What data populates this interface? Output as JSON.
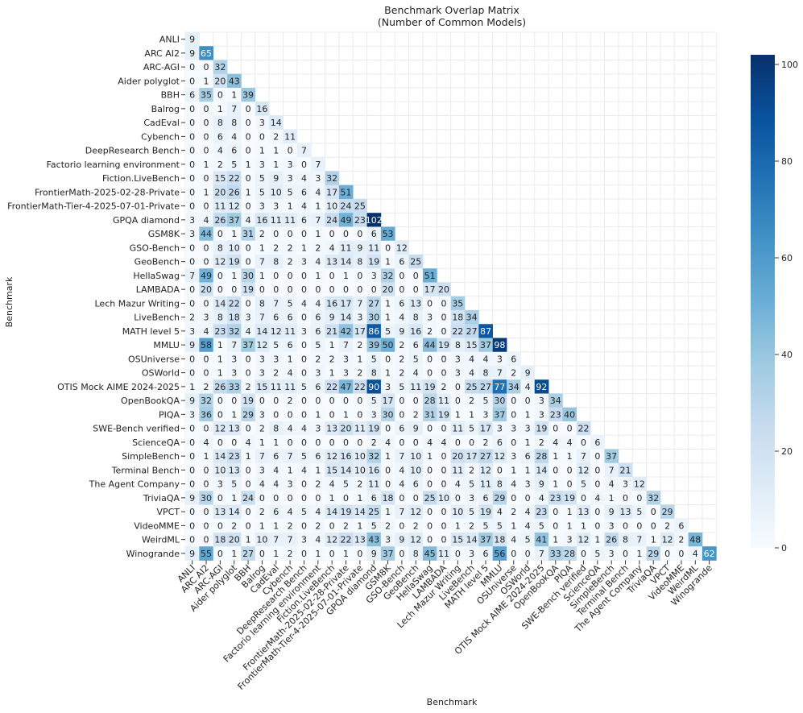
{
  "chart_data": {
    "type": "heatmap",
    "title": "Benchmark Overlap Matrix",
    "subtitle": "(Number of Common Models)",
    "xlabel": "Benchmark",
    "ylabel": "Benchmark",
    "colormap": "Blues",
    "color_low": "#f7fbff",
    "color_high": "#08306b",
    "value_range": [
      0,
      102
    ],
    "colorbar_ticks": [
      0,
      20,
      40,
      60,
      80,
      100
    ],
    "mask": "upper-triangle",
    "labels": [
      "ANLI",
      "ARC AI2",
      "ARC-AGI",
      "Aider polyglot",
      "BBH",
      "Balrog",
      "CadEval",
      "Cybench",
      "DeepResearch Bench",
      "Factorio learning environment",
      "Fiction.LiveBench",
      "FrontierMath-2025-02-28-Private",
      "FrontierMath-Tier-4-2025-07-01-Private",
      "GPQA diamond",
      "GSM8K",
      "GSO-Bench",
      "GeoBench",
      "HellaSwag",
      "LAMBADA",
      "Lech Mazur Writing",
      "LiveBench",
      "MATH level 5",
      "MMLU",
      "OSUniverse",
      "OSWorld",
      "OTIS Mock AIME 2024-2025",
      "OpenBookQA",
      "PIQA",
      "SWE-Bench verified",
      "ScienceQA",
      "SimpleBench",
      "Terminal Bench",
      "The Agent Company",
      "TriviaQA",
      "VPCT",
      "VideoMME",
      "WeirdML",
      "Winogrande"
    ],
    "rows": [
      [
        9
      ],
      [
        9,
        65
      ],
      [
        0,
        0,
        32
      ],
      [
        0,
        1,
        20,
        43
      ],
      [
        6,
        35,
        0,
        1,
        39
      ],
      [
        0,
        0,
        1,
        7,
        0,
        16
      ],
      [
        0,
        0,
        8,
        8,
        0,
        3,
        14
      ],
      [
        0,
        0,
        6,
        4,
        0,
        0,
        2,
        11
      ],
      [
        0,
        0,
        4,
        6,
        0,
        1,
        1,
        0,
        7
      ],
      [
        0,
        1,
        2,
        5,
        1,
        3,
        1,
        3,
        0,
        7
      ],
      [
        0,
        0,
        15,
        22,
        0,
        5,
        9,
        3,
        4,
        3,
        32
      ],
      [
        0,
        1,
        20,
        26,
        1,
        5,
        10,
        5,
        6,
        4,
        17,
        51
      ],
      [
        0,
        0,
        11,
        12,
        0,
        3,
        3,
        1,
        4,
        1,
        10,
        24,
        25
      ],
      [
        3,
        4,
        26,
        37,
        4,
        16,
        11,
        11,
        6,
        7,
        24,
        49,
        23,
        102
      ],
      [
        3,
        44,
        0,
        1,
        31,
        2,
        0,
        0,
        0,
        1,
        0,
        0,
        0,
        6,
        53
      ],
      [
        0,
        0,
        8,
        10,
        0,
        1,
        2,
        2,
        1,
        2,
        4,
        11,
        9,
        11,
        0,
        12
      ],
      [
        0,
        0,
        12,
        19,
        0,
        7,
        8,
        2,
        3,
        4,
        13,
        14,
        8,
        19,
        1,
        6,
        25
      ],
      [
        7,
        49,
        0,
        1,
        30,
        1,
        0,
        0,
        0,
        1,
        0,
        1,
        0,
        3,
        32,
        0,
        0,
        51
      ],
      [
        0,
        20,
        0,
        0,
        19,
        0,
        0,
        0,
        0,
        0,
        0,
        0,
        0,
        0,
        20,
        0,
        0,
        17,
        20
      ],
      [
        0,
        0,
        14,
        22,
        0,
        8,
        7,
        5,
        4,
        4,
        16,
        17,
        7,
        27,
        1,
        6,
        13,
        0,
        0,
        35
      ],
      [
        2,
        3,
        8,
        18,
        3,
        7,
        6,
        6,
        0,
        6,
        9,
        14,
        3,
        30,
        1,
        4,
        8,
        3,
        0,
        18,
        34
      ],
      [
        3,
        4,
        23,
        32,
        4,
        14,
        12,
        11,
        3,
        6,
        21,
        42,
        17,
        86,
        5,
        9,
        16,
        2,
        0,
        22,
        27,
        87
      ],
      [
        9,
        58,
        1,
        7,
        37,
        12,
        5,
        6,
        0,
        5,
        1,
        7,
        2,
        39,
        50,
        2,
        6,
        44,
        19,
        8,
        15,
        37,
        98
      ],
      [
        0,
        0,
        1,
        3,
        0,
        3,
        3,
        1,
        0,
        2,
        2,
        3,
        1,
        5,
        0,
        2,
        5,
        0,
        0,
        3,
        4,
        4,
        3,
        6
      ],
      [
        0,
        0,
        1,
        3,
        0,
        3,
        2,
        4,
        0,
        3,
        1,
        3,
        2,
        8,
        1,
        2,
        4,
        0,
        0,
        3,
        4,
        8,
        7,
        2,
        9
      ],
      [
        1,
        2,
        26,
        33,
        2,
        15,
        11,
        11,
        5,
        6,
        22,
        47,
        22,
        90,
        3,
        5,
        11,
        19,
        2,
        0,
        25,
        27,
        77,
        34,
        4,
        92
      ],
      [
        9,
        32,
        0,
        0,
        19,
        0,
        0,
        2,
        0,
        0,
        0,
        0,
        0,
        5,
        17,
        0,
        0,
        28,
        11,
        0,
        2,
        5,
        30,
        0,
        0,
        3,
        34
      ],
      [
        3,
        36,
        0,
        1,
        29,
        3,
        0,
        0,
        0,
        1,
        0,
        1,
        0,
        3,
        30,
        0,
        2,
        31,
        19,
        1,
        1,
        3,
        37,
        0,
        1,
        3,
        23,
        40
      ],
      [
        0,
        0,
        12,
        13,
        0,
        2,
        8,
        4,
        4,
        3,
        13,
        20,
        11,
        19,
        0,
        6,
        9,
        0,
        0,
        11,
        5,
        17,
        3,
        3,
        3,
        19,
        0,
        0,
        22
      ],
      [
        0,
        4,
        0,
        0,
        4,
        1,
        1,
        0,
        0,
        0,
        0,
        0,
        0,
        2,
        4,
        0,
        0,
        4,
        4,
        0,
        0,
        2,
        6,
        0,
        1,
        2,
        4,
        4,
        0,
        6
      ],
      [
        0,
        1,
        14,
        23,
        1,
        7,
        6,
        7,
        5,
        6,
        12,
        16,
        10,
        32,
        1,
        7,
        10,
        1,
        0,
        20,
        17,
        27,
        12,
        3,
        6,
        28,
        1,
        1,
        7,
        0,
        37
      ],
      [
        0,
        0,
        10,
        13,
        0,
        3,
        4,
        1,
        4,
        1,
        15,
        14,
        10,
        16,
        0,
        4,
        10,
        0,
        0,
        11,
        2,
        12,
        0,
        1,
        1,
        14,
        0,
        0,
        12,
        0,
        7,
        21
      ],
      [
        0,
        0,
        3,
        5,
        0,
        4,
        4,
        3,
        0,
        2,
        4,
        5,
        2,
        11,
        0,
        4,
        6,
        0,
        0,
        4,
        5,
        11,
        8,
        4,
        3,
        9,
        1,
        0,
        5,
        0,
        4,
        3,
        12
      ],
      [
        9,
        30,
        0,
        1,
        24,
        0,
        0,
        0,
        0,
        0,
        1,
        0,
        1,
        6,
        18,
        0,
        0,
        25,
        10,
        0,
        3,
        6,
        29,
        0,
        0,
        4,
        23,
        19,
        0,
        4,
        1,
        0,
        0,
        32
      ],
      [
        0,
        0,
        13,
        14,
        0,
        2,
        6,
        4,
        5,
        4,
        14,
        19,
        14,
        25,
        1,
        7,
        12,
        0,
        0,
        10,
        5,
        19,
        4,
        2,
        4,
        23,
        0,
        1,
        13,
        0,
        9,
        13,
        5,
        0,
        29
      ],
      [
        0,
        0,
        0,
        2,
        0,
        1,
        1,
        2,
        0,
        2,
        0,
        2,
        1,
        5,
        2,
        0,
        2,
        0,
        0,
        1,
        2,
        5,
        5,
        1,
        4,
        5,
        0,
        1,
        1,
        0,
        3,
        0,
        0,
        0,
        2,
        6
      ],
      [
        0,
        0,
        18,
        20,
        1,
        10,
        7,
        7,
        3,
        4,
        12,
        22,
        13,
        43,
        3,
        9,
        12,
        0,
        0,
        15,
        14,
        37,
        18,
        4,
        5,
        41,
        1,
        3,
        12,
        1,
        26,
        8,
        7,
        1,
        12,
        2,
        48
      ],
      [
        9,
        55,
        0,
        1,
        27,
        0,
        1,
        2,
        0,
        1,
        0,
        1,
        0,
        9,
        37,
        0,
        8,
        45,
        11,
        0,
        3,
        6,
        56,
        0,
        0,
        7,
        33,
        28,
        0,
        5,
        3,
        0,
        1,
        29,
        0,
        0,
        4,
        62
      ]
    ]
  }
}
